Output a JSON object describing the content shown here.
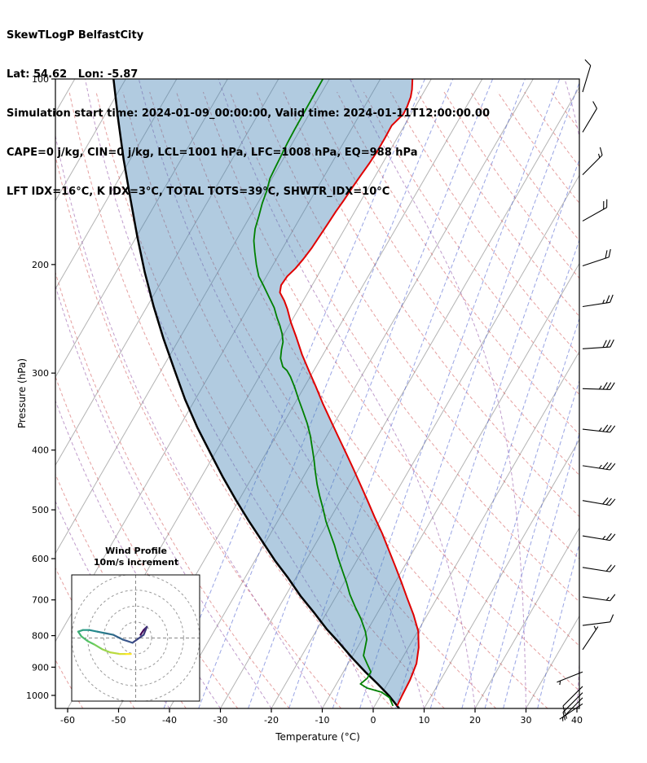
{
  "header": {
    "title": "SkewTLogP BelfastCity",
    "coordinates": "Lat: 54.62   Lon: -5.87",
    "times": "Simulation start time: 2024-01-09_00:00:00, Valid time: 2024-01-11T12:00:00.00",
    "indices1": "CAPE=0 j/kg, CIN=0 j/kg, LCL=1001 hPa, LFC=1008 hPa, EQ=988 hPa",
    "indices2": "LFT IDX=16°C, K IDX=3°C, TOTAL TOTS=39°C, SHWTR_IDX=10°C"
  },
  "axes": {
    "x_label": "Temperature (°C)",
    "y_label": "Pressure (hPa)",
    "x_ticks": [
      -60,
      -50,
      -40,
      -30,
      -20,
      -10,
      0,
      10,
      20,
      30,
      40
    ],
    "y_ticks": [
      100,
      200,
      300,
      400,
      500,
      600,
      700,
      800,
      900,
      1000
    ]
  },
  "inset": {
    "title1": "Wind Profile",
    "title2": "10m/s increment",
    "ring_step_ms": 10
  },
  "colors": {
    "temperature_line": "#e00000",
    "dewpoint_line": "#008000",
    "parcel_line": "#000000",
    "shade_fill": "rgba(70,130,180,0.42)",
    "isotherm": "#b3b3b3",
    "dry_adiabat": "rgba(208,80,80,0.55)",
    "moist_adiabat": "rgba(150,90,170,0.60)",
    "mixing_ratio": "rgba(70,90,205,0.55)",
    "frame": "#000000",
    "barb": "#000000",
    "hodo_ring": "#999999",
    "hodo_cross": "#888888"
  },
  "chart_data": {
    "type": "skewt-logp",
    "pressure_range_hpa": [
      100,
      1050
    ],
    "temperature_range_c": [
      -60,
      40
    ],
    "skew_rotation_deg": 30,
    "temperature_profile": [
      [
        1040,
        4.4
      ],
      [
        1000,
        4.2
      ],
      [
        944,
        4.0
      ],
      [
        888,
        3.4
      ],
      [
        836,
        2.0
      ],
      [
        787,
        0.1
      ],
      [
        740,
        -2.7
      ],
      [
        696,
        -5.8
      ],
      [
        655,
        -8.8
      ],
      [
        616,
        -11.9
      ],
      [
        580,
        -15.0
      ],
      [
        546,
        -18.1
      ],
      [
        514,
        -21.4
      ],
      [
        483,
        -24.7
      ],
      [
        455,
        -27.9
      ],
      [
        428,
        -31.2
      ],
      [
        403,
        -34.5
      ],
      [
        379,
        -37.9
      ],
      [
        357,
        -41.2
      ],
      [
        336,
        -44.5
      ],
      [
        316,
        -47.7
      ],
      [
        297,
        -51.0
      ],
      [
        280,
        -54.1
      ],
      [
        263,
        -57.1
      ],
      [
        248,
        -60.0
      ],
      [
        236,
        -62.2
      ],
      [
        229,
        -63.7
      ],
      [
        222,
        -65.5
      ],
      [
        216,
        -66.1
      ],
      [
        209,
        -65.9
      ],
      [
        203,
        -65.2
      ],
      [
        196,
        -64.7
      ],
      [
        188,
        -64.3
      ],
      [
        180,
        -64.1
      ],
      [
        172,
        -63.9
      ],
      [
        164,
        -63.7
      ],
      [
        157,
        -63.4
      ],
      [
        150,
        -63.2
      ],
      [
        143,
        -62.9
      ],
      [
        137,
        -62.6
      ],
      [
        131,
        -62.4
      ],
      [
        125,
        -62.4
      ],
      [
        119,
        -62.5
      ],
      [
        114,
        -61.5
      ],
      [
        111,
        -61.6
      ],
      [
        107,
        -62.0
      ],
      [
        104,
        -62.6
      ],
      [
        100,
        -63.7
      ]
    ],
    "dewpoint_profile": [
      [
        1040,
        3.6
      ],
      [
        1009,
        2.0
      ],
      [
        988,
        -0.2
      ],
      [
        973,
        -3.5
      ],
      [
        958,
        -5.3
      ],
      [
        938,
        -4.6
      ],
      [
        916,
        -4.6
      ],
      [
        888,
        -6.3
      ],
      [
        862,
        -7.9
      ],
      [
        836,
        -8.5
      ],
      [
        811,
        -9.1
      ],
      [
        787,
        -10.3
      ],
      [
        751,
        -12.6
      ],
      [
        718,
        -15.1
      ],
      [
        686,
        -17.5
      ],
      [
        655,
        -19.6
      ],
      [
        626,
        -21.8
      ],
      [
        598,
        -24.0
      ],
      [
        571,
        -26.1
      ],
      [
        546,
        -28.3
      ],
      [
        522,
        -30.5
      ],
      [
        498,
        -32.5
      ],
      [
        476,
        -34.5
      ],
      [
        455,
        -36.4
      ],
      [
        435,
        -38.1
      ],
      [
        415,
        -39.8
      ],
      [
        397,
        -41.5
      ],
      [
        379,
        -43.3
      ],
      [
        362,
        -45.3
      ],
      [
        346,
        -47.5
      ],
      [
        331,
        -49.7
      ],
      [
        316,
        -51.9
      ],
      [
        304,
        -53.9
      ],
      [
        297,
        -55.3
      ],
      [
        293,
        -56.5
      ],
      [
        284,
        -57.9
      ],
      [
        275,
        -58.7
      ],
      [
        267,
        -59.3
      ],
      [
        259,
        -60.4
      ],
      [
        251,
        -61.8
      ],
      [
        244,
        -63.2
      ],
      [
        235,
        -64.9
      ],
      [
        226,
        -67.1
      ],
      [
        216,
        -69.6
      ],
      [
        209,
        -71.5
      ],
      [
        200,
        -73.3
      ],
      [
        191,
        -75.0
      ],
      [
        183,
        -76.5
      ],
      [
        175,
        -77.6
      ],
      [
        167,
        -78.3
      ],
      [
        159,
        -79.1
      ],
      [
        152,
        -79.6
      ],
      [
        145,
        -80.4
      ],
      [
        139,
        -80.6
      ],
      [
        133,
        -80.8
      ],
      [
        127,
        -81.0
      ],
      [
        121,
        -81.1
      ],
      [
        111,
        -81.2
      ],
      [
        100,
        -81.3
      ]
    ],
    "parcel_profile": [
      [
        1050,
        5.1
      ],
      [
        1003,
        1.8
      ],
      [
        958,
        -1.9
      ],
      [
        916,
        -5.7
      ],
      [
        870,
        -9.8
      ],
      [
        823,
        -14.0
      ],
      [
        780,
        -18.2
      ],
      [
        733,
        -22.6
      ],
      [
        690,
        -27.0
      ],
      [
        645,
        -31.5
      ],
      [
        604,
        -36.1
      ],
      [
        561,
        -40.9
      ],
      [
        522,
        -45.6
      ],
      [
        482,
        -50.6
      ],
      [
        443,
        -55.7
      ],
      [
        404,
        -61.0
      ],
      [
        367,
        -66.5
      ],
      [
        331,
        -72.0
      ],
      [
        296,
        -77.5
      ],
      [
        264,
        -83.1
      ],
      [
        234,
        -88.7
      ],
      [
        206,
        -94.3
      ],
      [
        180,
        -99.9
      ],
      [
        156,
        -105.6
      ],
      [
        135,
        -111.3
      ],
      [
        116,
        -117.0
      ],
      [
        100,
        -122.4
      ]
    ],
    "shaded_area": "between parcel_profile and temperature_profile",
    "wind_barbs": [
      {
        "p": 1032,
        "u": 3,
        "v": 2
      },
      {
        "p": 1009,
        "u": 5,
        "v": 5
      },
      {
        "p": 990,
        "u": 6,
        "v": 6
      },
      {
        "p": 967,
        "u": 7,
        "v": 7
      },
      {
        "p": 916,
        "u": 5,
        "v": 2
      },
      {
        "p": 843,
        "u": -2,
        "v": -3
      },
      {
        "p": 770,
        "u": -8,
        "v": -1
      },
      {
        "p": 692,
        "u": -14,
        "v": 2
      },
      {
        "p": 620,
        "u": -19,
        "v": 3
      },
      {
        "p": 551,
        "u": -24,
        "v": 4
      },
      {
        "p": 483,
        "u": -29,
        "v": 5
      },
      {
        "p": 424,
        "u": -33,
        "v": 5
      },
      {
        "p": 370,
        "u": -36,
        "v": 4
      },
      {
        "p": 318,
        "u": -34,
        "v": 1
      },
      {
        "p": 274,
        "u": -30,
        "v": -2
      },
      {
        "p": 234,
        "u": -26,
        "v": -4
      },
      {
        "p": 201,
        "u": -21,
        "v": -7
      },
      {
        "p": 170,
        "u": -16,
        "v": -9
      },
      {
        "p": 143,
        "u": -10,
        "v": -10
      },
      {
        "p": 122,
        "u": -6,
        "v": -10
      },
      {
        "p": 105,
        "u": -3,
        "v": -10
      }
    ],
    "hodograph_uv": [
      [
        3,
        2
      ],
      [
        5,
        5
      ],
      [
        6,
        6
      ],
      [
        7,
        7
      ],
      [
        5,
        2
      ],
      [
        -2,
        -3
      ],
      [
        -8,
        -1
      ],
      [
        -14,
        2
      ],
      [
        -19,
        3
      ],
      [
        -24,
        4
      ],
      [
        -29,
        5
      ],
      [
        -33,
        5
      ],
      [
        -36,
        4
      ],
      [
        -34,
        1
      ],
      [
        -30,
        -2
      ],
      [
        -26,
        -4
      ],
      [
        -21,
        -7
      ],
      [
        -16,
        -9
      ],
      [
        -10,
        -10
      ],
      [
        -6,
        -10
      ],
      [
        -3,
        -10
      ]
    ],
    "background": {
      "isotherms_c": {
        "start": -130,
        "end": 40,
        "step": 10
      },
      "dry_adiabats_theta_c": {
        "start": -60,
        "end": 200,
        "step": 10
      },
      "moist_adiabats_t0_c": {
        "start": -40,
        "end": 40,
        "step": 10
      },
      "mixing_ratio_g_kg": [
        0.1,
        0.2,
        0.5,
        1,
        2,
        3,
        5,
        8,
        12,
        16,
        20,
        30
      ]
    }
  }
}
